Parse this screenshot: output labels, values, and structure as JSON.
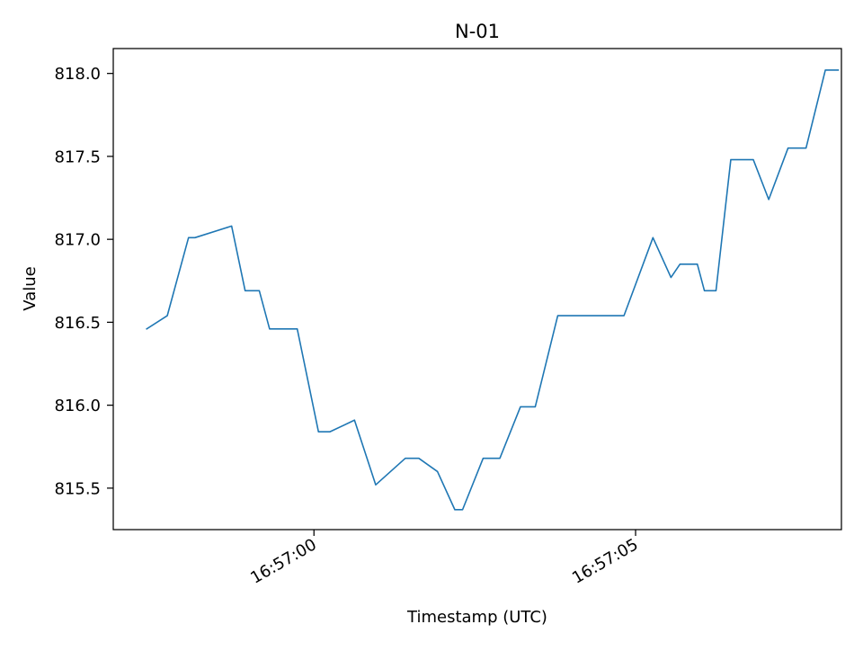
{
  "chart_data": {
    "type": "line",
    "title": "N-01",
    "xlabel": "Timestamp (UTC)",
    "ylabel": "Value",
    "x_axis_type": "time",
    "xlim": [
      "16:56:56.880",
      "16:57:08.200"
    ],
    "ylim": [
      815.25,
      818.15
    ],
    "x_ticks": [
      {
        "value": "16:57:00",
        "label": "16:57:00"
      },
      {
        "value": "16:57:05",
        "label": "16:57:05"
      }
    ],
    "y_ticks": [
      {
        "value": 815.5,
        "label": "815.5"
      },
      {
        "value": 816.0,
        "label": "816.0"
      },
      {
        "value": 816.5,
        "label": "816.5"
      },
      {
        "value": 817.0,
        "label": "817.0"
      },
      {
        "value": 817.5,
        "label": "817.5"
      },
      {
        "value": 818.0,
        "label": "818.0"
      }
    ],
    "grid": false,
    "legend": "none",
    "line_color": "#1f77b4",
    "series": [
      {
        "color": "#1f77b4",
        "points": [
          {
            "x": "16:56:57.400",
            "y": 816.46
          },
          {
            "x": "16:56:57.720",
            "y": 816.54
          },
          {
            "x": "16:56:58.050",
            "y": 817.01
          },
          {
            "x": "16:56:58.150",
            "y": 817.01
          },
          {
            "x": "16:56:58.720",
            "y": 817.08
          },
          {
            "x": "16:56:58.930",
            "y": 816.69
          },
          {
            "x": "16:56:59.150",
            "y": 816.69
          },
          {
            "x": "16:56:59.310",
            "y": 816.46
          },
          {
            "x": "16:56:59.740",
            "y": 816.46
          },
          {
            "x": "16:57:00.070",
            "y": 815.84
          },
          {
            "x": "16:57:00.250",
            "y": 815.84
          },
          {
            "x": "16:57:00.630",
            "y": 815.91
          },
          {
            "x": "16:57:00.960",
            "y": 815.52
          },
          {
            "x": "16:57:01.420",
            "y": 815.68
          },
          {
            "x": "16:57:01.630",
            "y": 815.68
          },
          {
            "x": "16:57:01.920",
            "y": 815.6
          },
          {
            "x": "16:57:02.190",
            "y": 815.37
          },
          {
            "x": "16:57:02.310",
            "y": 815.37
          },
          {
            "x": "16:57:02.630",
            "y": 815.68
          },
          {
            "x": "16:57:02.890",
            "y": 815.68
          },
          {
            "x": "16:57:03.210",
            "y": 815.99
          },
          {
            "x": "16:57:03.440",
            "y": 815.99
          },
          {
            "x": "16:57:03.790",
            "y": 816.54
          },
          {
            "x": "16:57:04.820",
            "y": 816.54
          },
          {
            "x": "16:57:05.270",
            "y": 817.01
          },
          {
            "x": "16:57:05.550",
            "y": 816.77
          },
          {
            "x": "16:57:05.690",
            "y": 816.85
          },
          {
            "x": "16:57:05.960",
            "y": 816.85
          },
          {
            "x": "16:57:06.070",
            "y": 816.69
          },
          {
            "x": "16:57:06.250",
            "y": 816.69
          },
          {
            "x": "16:57:06.480",
            "y": 817.48
          },
          {
            "x": "16:57:06.830",
            "y": 817.48
          },
          {
            "x": "16:57:07.070",
            "y": 817.24
          },
          {
            "x": "16:57:07.370",
            "y": 817.55
          },
          {
            "x": "16:57:07.650",
            "y": 817.55
          },
          {
            "x": "16:57:07.950",
            "y": 818.02
          },
          {
            "x": "16:57:08.150",
            "y": 818.02
          }
        ]
      }
    ]
  }
}
